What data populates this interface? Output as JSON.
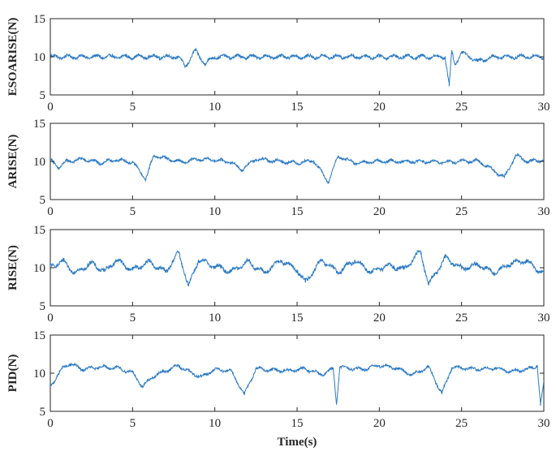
{
  "chart_data": [
    {
      "type": "line",
      "ylabel": "ESOARISE(N)",
      "xlabel": "",
      "xlim": [
        0,
        30
      ],
      "ylim": [
        5,
        15
      ],
      "xticks": [
        0,
        5,
        10,
        15,
        20,
        25,
        30
      ],
      "yticks": [
        5,
        10,
        15
      ],
      "grid": false,
      "series_color": "#2a79c4",
      "x": [
        0,
        2,
        4,
        6,
        7.8,
        8.2,
        8.8,
        9.4,
        10,
        12,
        14,
        16,
        18,
        20,
        22,
        24,
        24.25,
        24.4,
        24.6,
        25,
        26,
        27,
        28,
        30
      ],
      "y": [
        10,
        10,
        10,
        10,
        10,
        8.7,
        10.8,
        9.1,
        10,
        10,
        10,
        10,
        10,
        10,
        10,
        10,
        6.2,
        10.7,
        9,
        10.6,
        9.4,
        10,
        10,
        10
      ]
    },
    {
      "type": "line",
      "ylabel": "ARISE(N)",
      "xlabel": "",
      "xlim": [
        0,
        30
      ],
      "ylim": [
        5,
        15
      ],
      "xticks": [
        0,
        5,
        10,
        15,
        20,
        25,
        30
      ],
      "yticks": [
        5,
        10,
        15
      ],
      "grid": false,
      "series_color": "#2a79c4",
      "x": [
        0,
        0.5,
        1,
        2,
        3,
        4,
        5,
        5.8,
        6.3,
        7,
        8,
        9,
        10,
        11,
        11.6,
        12.5,
        14,
        15,
        16,
        16.9,
        17.5,
        18.5,
        20,
        22,
        24,
        26,
        27.6,
        28.3,
        29,
        30
      ],
      "y": [
        10.2,
        9.2,
        10,
        10.3,
        9.8,
        10.2,
        9.9,
        7.7,
        10.8,
        10.4,
        9.9,
        10.3,
        10.2,
        9.9,
        8.9,
        10.3,
        10,
        9.8,
        10.1,
        7.3,
        10.7,
        9.8,
        10,
        10,
        9.9,
        10.1,
        7.9,
        10.8,
        10,
        10.2
      ]
    },
    {
      "type": "line",
      "ylabel": "RISE(N)",
      "xlabel": "",
      "xlim": [
        0,
        30
      ],
      "ylim": [
        5,
        15
      ],
      "xticks": [
        0,
        5,
        10,
        15,
        20,
        25,
        30
      ],
      "yticks": [
        5,
        10,
        15
      ],
      "grid": false,
      "series_color": "#2a79c4",
      "x": [
        0,
        0.8,
        1.5,
        2.5,
        3.3,
        4,
        5,
        6,
        7,
        7.8,
        8.4,
        9,
        10,
        11,
        12,
        13,
        14,
        15,
        15.5,
        16.5,
        17.5,
        18.5,
        19.5,
        20.5,
        21.5,
        22.5,
        23,
        24,
        25,
        26,
        27,
        28,
        29,
        29.5,
        30
      ],
      "y": [
        10.2,
        10.8,
        9.3,
        10.6,
        9.5,
        11,
        9.7,
        10.8,
        9.4,
        12,
        7.6,
        11,
        10.2,
        9.5,
        10.8,
        9.3,
        11,
        9.7,
        8.1,
        11,
        9.4,
        11,
        9.4,
        10.3,
        9.8,
        12.2,
        7.8,
        11.3,
        9.9,
        10.4,
        9.3,
        10.6,
        10.9,
        9.8,
        9.4
      ]
    },
    {
      "type": "line",
      "ylabel": "PID(N)",
      "xlabel": "Time(s)",
      "xlim": [
        0,
        30
      ],
      "ylim": [
        5,
        15
      ],
      "xticks": [
        0,
        5,
        10,
        15,
        20,
        25,
        30
      ],
      "yticks": [
        5,
        10,
        15
      ],
      "grid": false,
      "series_color": "#2a79c4",
      "x": [
        0,
        0.8,
        1.2,
        2,
        3,
        4,
        5,
        5.6,
        6.2,
        7,
        7.8,
        8.5,
        9.2,
        10,
        11,
        11.8,
        12.5,
        13.5,
        14.5,
        15.5,
        16.5,
        17.2,
        17.4,
        17.6,
        18.3,
        19,
        20,
        21,
        22,
        23,
        23.8,
        24.4,
        25,
        26,
        27,
        28,
        29,
        29.6,
        29.8,
        30
      ],
      "y": [
        8.3,
        10.8,
        11.2,
        10.5,
        10.8,
        10.7,
        10.1,
        8.2,
        9.5,
        10.3,
        11,
        10.1,
        9.5,
        10.5,
        10.3,
        7.2,
        10.6,
        10.4,
        10.3,
        10.6,
        9.8,
        10.6,
        6,
        10.8,
        10.6,
        10.5,
        11,
        10.7,
        9.8,
        10.8,
        7.3,
        10.7,
        10.7,
        10.5,
        10.7,
        10.2,
        10.5,
        11,
        5.8,
        8.8
      ]
    }
  ]
}
